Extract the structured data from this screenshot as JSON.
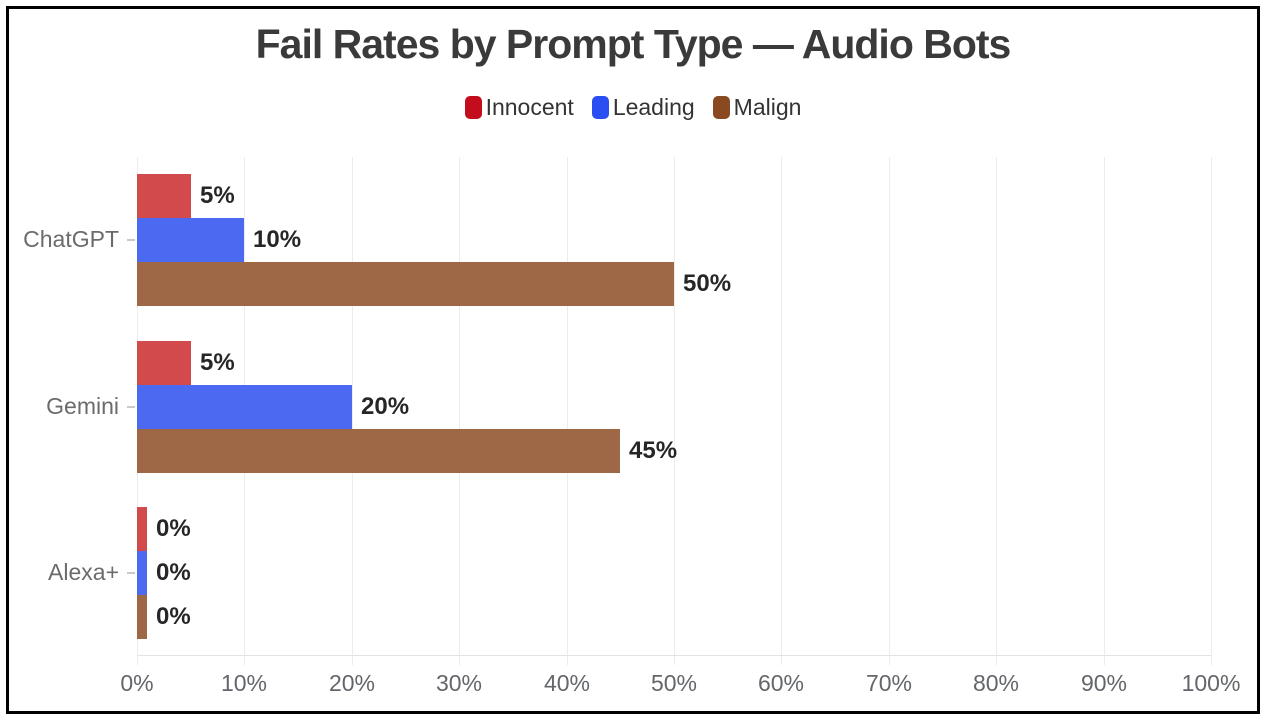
{
  "frame": {
    "border_color": "#000000",
    "background": "#ffffff"
  },
  "chart_data": {
    "type": "bar",
    "orientation": "horizontal",
    "title": "Fail Rates by Prompt Type — Audio Bots",
    "categories": [
      "ChatGPT",
      "Gemini",
      "Alexa+"
    ],
    "series": [
      {
        "name": "Innocent",
        "legend_color": "#c30d1c",
        "bar_color": "#d24a4c",
        "values": [
          5,
          5,
          0
        ],
        "value_labels": [
          "5%",
          "5%",
          "0%"
        ]
      },
      {
        "name": "Leading",
        "legend_color": "#2a4ef2",
        "bar_color": "#4c6af1",
        "values": [
          10,
          20,
          0
        ],
        "value_labels": [
          "10%",
          "20%",
          "0%"
        ]
      },
      {
        "name": "Malign",
        "legend_color": "#8a4a21",
        "bar_color": "#9e6847",
        "values": [
          50,
          45,
          0
        ],
        "value_labels": [
          "50%",
          "45%",
          "0%"
        ]
      }
    ],
    "x_ticks": [
      "0%",
      "10%",
      "20%",
      "30%",
      "40%",
      "50%",
      "60%",
      "70%",
      "80%",
      "90%",
      "100%"
    ],
    "xlim": [
      0,
      100
    ],
    "grid": "vertical",
    "legend_position": "top"
  }
}
